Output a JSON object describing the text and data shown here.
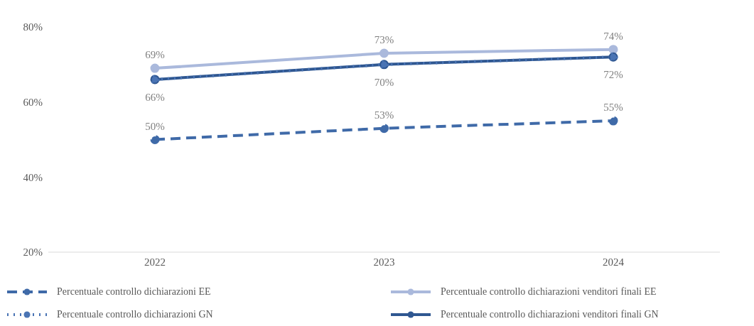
{
  "chart_data": {
    "type": "line",
    "categories": [
      "2022",
      "2023",
      "2024"
    ],
    "ylim": [
      20,
      80
    ],
    "yticks": [
      {
        "value": 20,
        "label": "20%"
      },
      {
        "value": 40,
        "label": "40%"
      },
      {
        "value": 60,
        "label": "60%"
      },
      {
        "value": 80,
        "label": "80%"
      }
    ],
    "legend": "bottom",
    "marker": "circle",
    "series": [
      {
        "name": "Percentuale controllo dichiarazioni EE",
        "color": "#3f6aa8",
        "line_style": "dashed",
        "values": [
          50,
          53,
          55
        ],
        "value_labels": [
          "50%",
          "53%",
          "55%"
        ]
      },
      {
        "name": "Percentuale controllo dichiarazioni venditori finali EE",
        "color": "#aab9dc",
        "line_style": "solid",
        "values": [
          69,
          73,
          74
        ],
        "value_labels": [
          "69%",
          "73%",
          "74%"
        ]
      },
      {
        "name": "Percentuale controllo dichiarazioni GN",
        "color": "#4a74b4",
        "line_style": "dotted",
        "values": [
          66,
          70,
          72
        ],
        "value_labels": [
          "66%",
          "70%",
          "72%"
        ]
      },
      {
        "name": "Percentuale controllo dichiarazioni venditori finali GN",
        "color": "#2f5791",
        "line_style": "solid",
        "values": [
          66,
          70,
          72
        ],
        "value_labels": [
          null,
          null,
          null
        ]
      }
    ]
  }
}
